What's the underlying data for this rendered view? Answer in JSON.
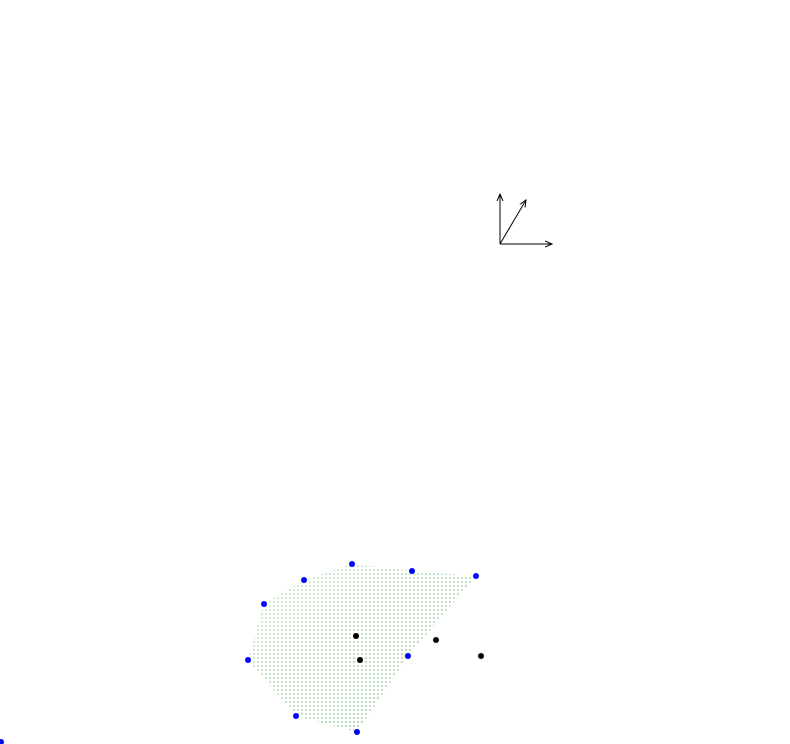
{
  "colors": {
    "background": "#ffffff",
    "axis_stroke": "#000000",
    "region_fill": "#9fd49f",
    "hull_point": "#0000ff",
    "interior_point": "#000000"
  },
  "diagram": {
    "description_icons": [
      "axes-triad-icon"
    ],
    "hull_points": [
      {
        "id": "p1",
        "label": ""
      },
      {
        "id": "p2",
        "label": ""
      },
      {
        "id": "p3",
        "label": ""
      },
      {
        "id": "p4",
        "label": ""
      },
      {
        "id": "p5",
        "label": ""
      },
      {
        "id": "p6",
        "label": ""
      },
      {
        "id": "p7",
        "label": ""
      },
      {
        "id": "p8",
        "label": ""
      },
      {
        "id": "p9",
        "label": ""
      }
    ],
    "interior_points": [
      {
        "id": "q1",
        "label": ""
      },
      {
        "id": "q2",
        "label": ""
      },
      {
        "id": "q3",
        "label": ""
      },
      {
        "id": "q4",
        "label": ""
      }
    ]
  }
}
